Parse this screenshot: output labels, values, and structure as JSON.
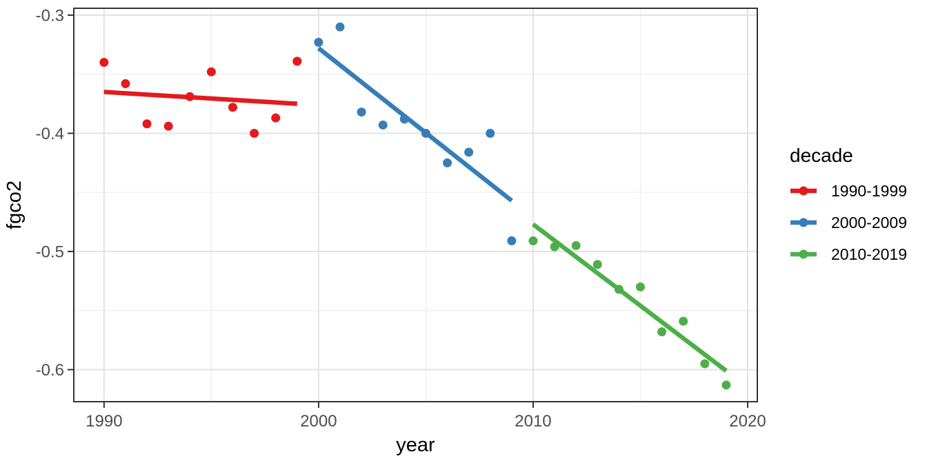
{
  "figure": {
    "background": "#ffffff",
    "panel_background": "#ffffff",
    "panel_border_color": "#333333",
    "grid_major_color": "#e3e3e3",
    "grid_minor_color": "#f0f0f0",
    "tick_color": "#333333",
    "tick_label_color": "#4d4d4d",
    "title_color": "#000000"
  },
  "chart_data": {
    "type": "scatter",
    "title": "",
    "xlabel": "year",
    "ylabel": "fgco2",
    "xlim": [
      1988.59,
      2020.45
    ],
    "ylim": [
      -0.6271,
      -0.2942
    ],
    "grid": true,
    "legend_title": "decade",
    "legend_position": "right",
    "x_ticks": [
      1990,
      2000,
      2010,
      2020
    ],
    "x_tick_labels": [
      "1990",
      "2000",
      "2010",
      "2020"
    ],
    "x_minor_ticks": [
      1995,
      2005,
      2015
    ],
    "y_ticks": [
      -0.3,
      -0.4,
      -0.5,
      -0.6
    ],
    "y_tick_labels": [
      "-0.3",
      "-0.4",
      "-0.5",
      "-0.6"
    ],
    "y_minor_ticks": [
      -0.35,
      -0.45,
      -0.55
    ],
    "series": [
      {
        "name": "1990-1999",
        "color": "#E41A1C",
        "x": [
          1990,
          1991,
          1992,
          1993,
          1994,
          1995,
          1996,
          1997,
          1998,
          1999
        ],
        "y": [
          -0.34,
          -0.358,
          -0.392,
          -0.394,
          -0.369,
          -0.348,
          -0.378,
          -0.4,
          -0.387,
          -0.339
        ],
        "trend_line": {
          "x": [
            1990,
            1999
          ],
          "y": [
            -0.365,
            -0.375
          ]
        }
      },
      {
        "name": "2000-2009",
        "color": "#377EB8",
        "x": [
          2000,
          2001,
          2002,
          2003,
          2004,
          2005,
          2006,
          2007,
          2008,
          2009
        ],
        "y": [
          -0.323,
          -0.31,
          -0.382,
          -0.393,
          -0.388,
          -0.4,
          -0.425,
          -0.416,
          -0.4,
          -0.491
        ],
        "trend_line": {
          "x": [
            2000,
            2009
          ],
          "y": [
            -0.328,
            -0.457
          ]
        }
      },
      {
        "name": "2010-2019",
        "color": "#4DAF4A",
        "x": [
          2010,
          2011,
          2012,
          2013,
          2014,
          2015,
          2016,
          2017,
          2018,
          2019
        ],
        "y": [
          -0.491,
          -0.496,
          -0.495,
          -0.511,
          -0.532,
          -0.53,
          -0.568,
          -0.559,
          -0.595,
          -0.613
        ],
        "trend_line": {
          "x": [
            2010,
            2019
          ],
          "y": [
            -0.477,
            -0.601
          ]
        }
      }
    ]
  }
}
